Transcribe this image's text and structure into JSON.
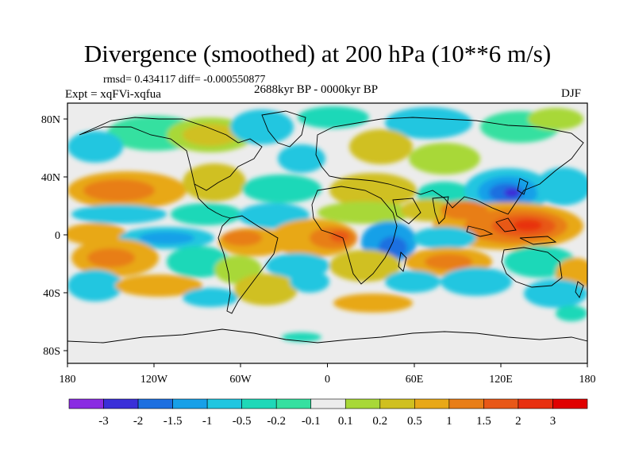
{
  "header": {
    "title": "Divergence (smoothed) at 200 hPa (10**6 m/s)",
    "stats": "rmsd= 0.434117  diff= -0.000550877",
    "experiment": "Expt = xqFVi-xqfua",
    "period": "2688kyr BP - 0000kyr BP",
    "season": "DJF"
  },
  "axes": {
    "lat_labels": [
      "80N",
      "40N",
      "0",
      "40S",
      "80S"
    ],
    "lon_labels": [
      "180",
      "120W",
      "60W",
      "0",
      "60E",
      "120E",
      "180"
    ]
  },
  "colorbar": {
    "labels": [
      "-3",
      "-2",
      "-1.5",
      "-1",
      "-0.5",
      "-0.2",
      "-0.1",
      "0.1",
      "0.2",
      "0.5",
      "1",
      "1.5",
      "2",
      "3"
    ],
    "colors": [
      "#8a2be2",
      "#3a2fd8",
      "#1d6fe0",
      "#18a0e8",
      "#20c6e0",
      "#1ed8b8",
      "#35e0a0",
      "#ececec",
      "#a8d838",
      "#d0c020",
      "#e8a818",
      "#e87e18",
      "#e85818",
      "#e83010",
      "#e00000"
    ]
  }
}
